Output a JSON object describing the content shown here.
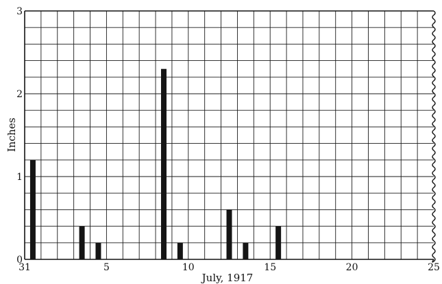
{
  "chart_data": {
    "type": "bar",
    "title": "",
    "xlabel": "July, 1917",
    "ylabel": "Inches",
    "ylim": [
      0,
      3
    ],
    "y_ticks": [
      0,
      1,
      2,
      3
    ],
    "x_tick_labels": [
      {
        "day": 0,
        "label": "31"
      },
      {
        "day": 5,
        "label": "5"
      },
      {
        "day": 10,
        "label": "10"
      },
      {
        "day": 15,
        "label": "15"
      },
      {
        "day": 20,
        "label": "20"
      },
      {
        "day": 25,
        "label": "25"
      }
    ],
    "x_range": [
      0,
      25
    ],
    "grid": true,
    "bars": [
      {
        "day": 1,
        "value": 1.2
      },
      {
        "day": 4,
        "value": 0.4
      },
      {
        "day": 5,
        "value": 0.2
      },
      {
        "day": 9,
        "value": 2.3
      },
      {
        "day": 10,
        "value": 0.2
      },
      {
        "day": 13,
        "value": 0.6
      },
      {
        "day": 14,
        "value": 0.2
      },
      {
        "day": 16,
        "value": 0.4
      }
    ]
  }
}
